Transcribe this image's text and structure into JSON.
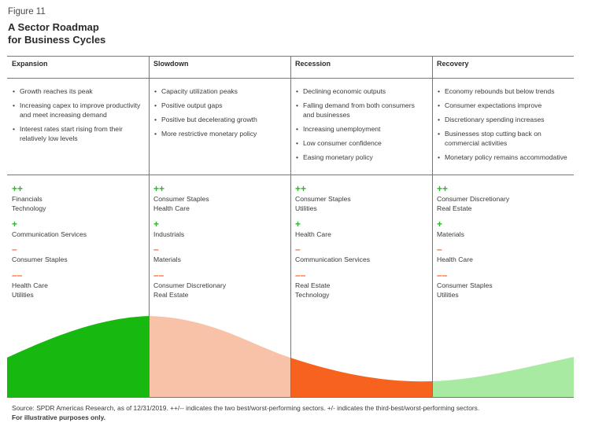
{
  "figure_label": "Figure 11",
  "title_lines": [
    "A Sector Roadmap",
    "for Business Cycles"
  ],
  "phases": [
    {
      "name": "Expansion",
      "bullets": [
        "Growth reaches its peak",
        "Increasing capex to improve productivity and meet increasing demand",
        "Interest rates start rising from their relatively low levels"
      ],
      "double_plus": [
        "Financials",
        "Technology"
      ],
      "plus": [
        "Communication Services"
      ],
      "minus": [
        "Consumer Staples"
      ],
      "double_minus": [
        "Health Care",
        "Utilities"
      ]
    },
    {
      "name": "Slowdown",
      "bullets": [
        "Capacity utilization peaks",
        "Positive output gaps",
        "Positive but decelerating growth",
        "More restrictive monetary policy"
      ],
      "double_plus": [
        "Consumer Staples",
        "Health Care"
      ],
      "plus": [
        "Industrials"
      ],
      "minus": [
        "Materials"
      ],
      "double_minus": [
        "Consumer Discretionary",
        "Real Estate"
      ]
    },
    {
      "name": "Recession",
      "bullets": [
        "Declining economic outputs",
        "Falling demand from both consumers and businesses",
        "Increasing unemployment",
        "Low consumer confidence",
        "Easing monetary policy"
      ],
      "double_plus": [
        "Consumer Staples",
        "Utilities"
      ],
      "plus": [
        "Health Care"
      ],
      "minus": [
        "Communication Services"
      ],
      "double_minus": [
        "Real Estate",
        "Technology"
      ]
    },
    {
      "name": "Recovery",
      "bullets": [
        "Economy rebounds but below trends",
        "Consumer expectations improve",
        "Discretionary spending increases",
        "Businesses stop cutting back on commercial activities",
        "Monetary policy remains accommodative"
      ],
      "double_plus": [
        "Consumer Discretionary",
        "Real Estate"
      ],
      "plus": [
        "Materials"
      ],
      "minus": [
        "Health Care"
      ],
      "double_minus": [
        "Consumer Staples",
        "Utilities"
      ]
    }
  ],
  "symbols": {
    "double_plus": "++",
    "plus": "+",
    "minus": "–",
    "double_minus": "––",
    "bullet": "•"
  },
  "colors": {
    "positive": "#2db52d",
    "negative": "#f26a3a",
    "expansion": "#17b80f",
    "slowdown": "#f8c2a9",
    "recession": "#f7621e",
    "recovery": "#a8eaa2",
    "rule": "#777777"
  },
  "source_text": "Source: SPDR Americas Research, as of 12/31/2019. ++/-- indicates the two best/worst-performing sectors. +/- indicates the third-best/worst-performing sectors.",
  "disclaimer": "For illustrative purposes only."
}
